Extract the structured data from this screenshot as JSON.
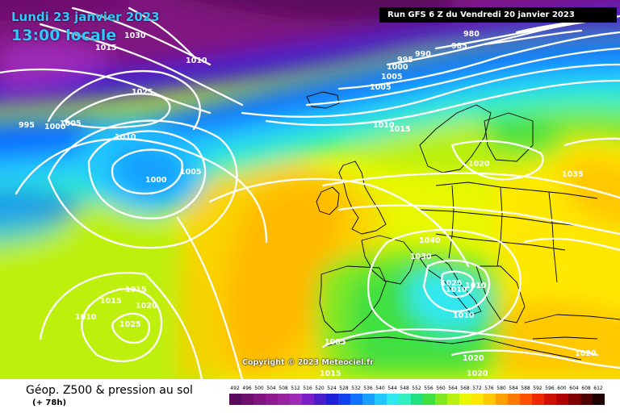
{
  "header": {
    "date": "Lundi 23 janvier 2023",
    "local_time": "13:00 locale",
    "run_info": "Run GFS 6 Z du Vendredi 20 janvier 2023"
  },
  "copyright": "Copyright © 2023 Meteociel.fr",
  "legend": {
    "title": "Géop. Z500 & pression au sol",
    "lead": "(+ 78h)",
    "scale": [
      {
        "value": "492",
        "color": "#5a0a5a"
      },
      {
        "value": "496",
        "color": "#6d0f6d"
      },
      {
        "value": "500",
        "color": "#801480"
      },
      {
        "value": "504",
        "color": "#8f1a8f"
      },
      {
        "value": "508",
        "color": "#9a22a0"
      },
      {
        "value": "512",
        "color": "#9e2ab8"
      },
      {
        "value": "516",
        "color": "#7a1ec8"
      },
      {
        "value": "520",
        "color": "#4a1ec8"
      },
      {
        "value": "524",
        "color": "#2020d8"
      },
      {
        "value": "528",
        "color": "#1040f0"
      },
      {
        "value": "532",
        "color": "#1070ff"
      },
      {
        "value": "536",
        "color": "#18a0ff"
      },
      {
        "value": "540",
        "color": "#20c8ff"
      },
      {
        "value": "544",
        "color": "#30e8f0"
      },
      {
        "value": "548",
        "color": "#30f0c0"
      },
      {
        "value": "552",
        "color": "#20e080"
      },
      {
        "value": "556",
        "color": "#40e040"
      },
      {
        "value": "560",
        "color": "#80e820"
      },
      {
        "value": "564",
        "color": "#b8f010"
      },
      {
        "value": "568",
        "color": "#e8f800"
      },
      {
        "value": "572",
        "color": "#ffe800"
      },
      {
        "value": "576",
        "color": "#ffc800"
      },
      {
        "value": "580",
        "color": "#ffa000"
      },
      {
        "value": "584",
        "color": "#ff7800"
      },
      {
        "value": "588",
        "color": "#ff5000"
      },
      {
        "value": "592",
        "color": "#f02800"
      },
      {
        "value": "596",
        "color": "#d01000"
      },
      {
        "value": "600",
        "color": "#b00000"
      },
      {
        "value": "604",
        "color": "#800000"
      },
      {
        "value": "608",
        "color": "#500000"
      },
      {
        "value": "612",
        "color": "#200000"
      }
    ]
  },
  "isobar_labels": [
    "1030",
    "1015",
    "1010",
    "995",
    "1000",
    "1005",
    "1025",
    "1010",
    "1005",
    "1000",
    "1005",
    "980",
    "985",
    "990",
    "995",
    "1000",
    "1005",
    "1010",
    "1015",
    "1020",
    "1035",
    "1040",
    "1030",
    "1025",
    "1010",
    "1010",
    "1010",
    "1015",
    "1015",
    "1020",
    "1010",
    "1025",
    "1005",
    "1020",
    "1015",
    "1020",
    "1020",
    "1020"
  ],
  "colors": {
    "isobar": "#ffffff",
    "coast": "#000000",
    "accent_title": "#32c8ff"
  }
}
